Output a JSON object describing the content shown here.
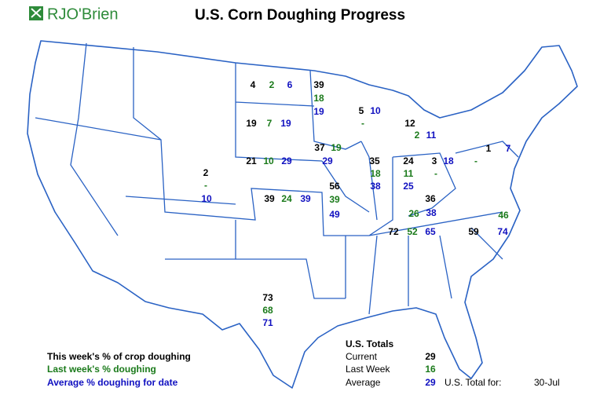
{
  "header": {
    "logo": "RJO'Brien",
    "title": "U.S. Corn Doughing Progress"
  },
  "states": [
    {
      "current": 4,
      "last": 2,
      "avg": 6
    },
    {
      "current": 39,
      "last": 18,
      "avg": 19
    },
    {
      "current": 5,
      "last": "-",
      "avg": 10
    },
    {
      "current": 12,
      "last": 2,
      "avg": 11
    },
    {
      "current": 19,
      "last": 7,
      "avg": 19
    },
    {
      "current": 37,
      "last": 19,
      "avg": 29
    },
    {
      "current": 21,
      "last": 10,
      "avg": 29
    },
    {
      "current": 2,
      "last": "-",
      "avg": 10
    },
    {
      "current": 39,
      "last": 24,
      "avg": 39
    },
    {
      "current": 56,
      "last": 39,
      "avg": 49
    },
    {
      "current": 35,
      "last": 18,
      "avg": 38
    },
    {
      "current": 24,
      "last": 11,
      "avg": 25
    },
    {
      "current": 3,
      "last": "-",
      "avg": 18
    },
    {
      "current": 1,
      "last": "-",
      "avg": 7
    },
    {
      "current": 36,
      "last": 26,
      "avg": 38
    },
    {
      "current": 72,
      "last": 52,
      "avg": 65
    },
    {
      "current": 59,
      "last": 46,
      "avg": 74
    },
    {
      "current": 73,
      "last": 68,
      "avg": 71
    }
  ],
  "legend": [
    "This week's % of crop doughing",
    "Last week's % doughing",
    "Average % doughing for date"
  ],
  "totals": {
    "heading": "U.S. Totals",
    "rows": [
      {
        "label": "Current",
        "value": 29
      },
      {
        "label": "Last Week",
        "value": 16
      },
      {
        "label": "Average",
        "value": 29
      }
    ],
    "date_label": "U.S. Total for:",
    "date": "30-Jul"
  }
}
